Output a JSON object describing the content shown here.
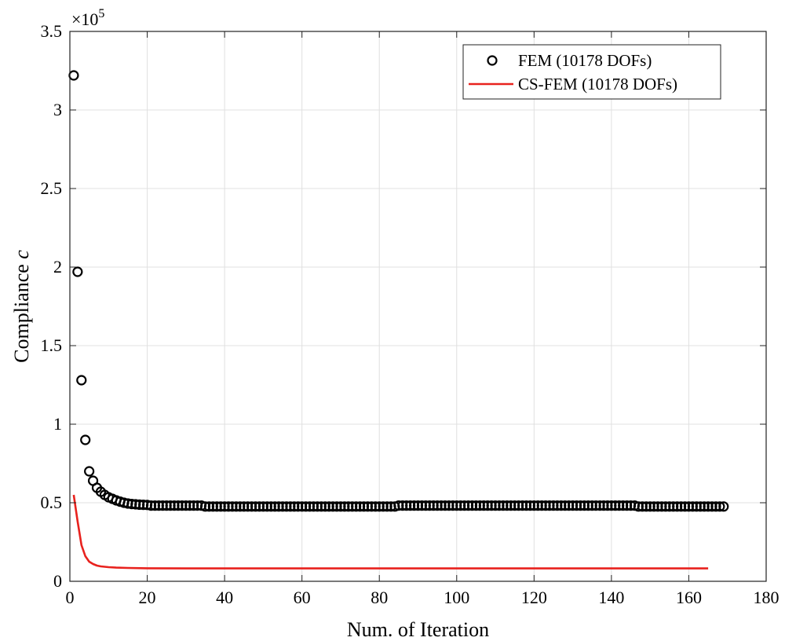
{
  "chart_data": {
    "type": "scatter",
    "xlabel": "Num. of Iteration",
    "ylabel_text": "Compliance ",
    "ylabel_var": "c",
    "exponent_base": "×10",
    "exponent_power": "5",
    "xlim": [
      0,
      180
    ],
    "ylim": [
      0,
      3.5
    ],
    "x_ticks": [
      0,
      20,
      40,
      60,
      80,
      100,
      120,
      140,
      160,
      180
    ],
    "y_ticks": [
      0,
      0.5,
      1,
      1.5,
      2,
      2.5,
      3,
      3.5
    ],
    "y_tick_labels": [
      "0",
      "0.5",
      "1",
      "1.5",
      "2",
      "2.5",
      "3",
      "3.5"
    ],
    "grid": true,
    "legend_position": "top-right",
    "series": [
      {
        "name": "FEM (10178 DOFs)",
        "kind": "markers",
        "marker": "circle",
        "color": "#000000",
        "head": [
          3.22,
          1.97,
          1.28,
          0.9,
          0.7,
          0.64,
          0.595,
          0.57,
          0.55,
          0.535,
          0.525,
          0.515,
          0.507,
          0.5,
          0.495,
          0.492,
          0.49,
          0.488,
          0.487,
          0.486
        ],
        "plateau": [
          {
            "from": 21,
            "to": 34,
            "value": 0.482
          },
          {
            "from": 35,
            "to": 84,
            "value": 0.476
          },
          {
            "from": 85,
            "to": 146,
            "value": 0.482
          },
          {
            "from": 147,
            "to": 169,
            "value": 0.476
          }
        ]
      },
      {
        "name": "CS-FEM (10178 DOFs)",
        "kind": "line",
        "color": "#e8221e",
        "x": [
          1,
          2,
          3,
          4,
          5,
          6,
          7,
          8,
          10,
          12,
          15,
          20,
          30,
          50,
          100,
          165
        ],
        "values": [
          0.55,
          0.38,
          0.23,
          0.16,
          0.125,
          0.11,
          0.1,
          0.095,
          0.09,
          0.087,
          0.085,
          0.083,
          0.082,
          0.082,
          0.082,
          0.082
        ]
      }
    ]
  }
}
